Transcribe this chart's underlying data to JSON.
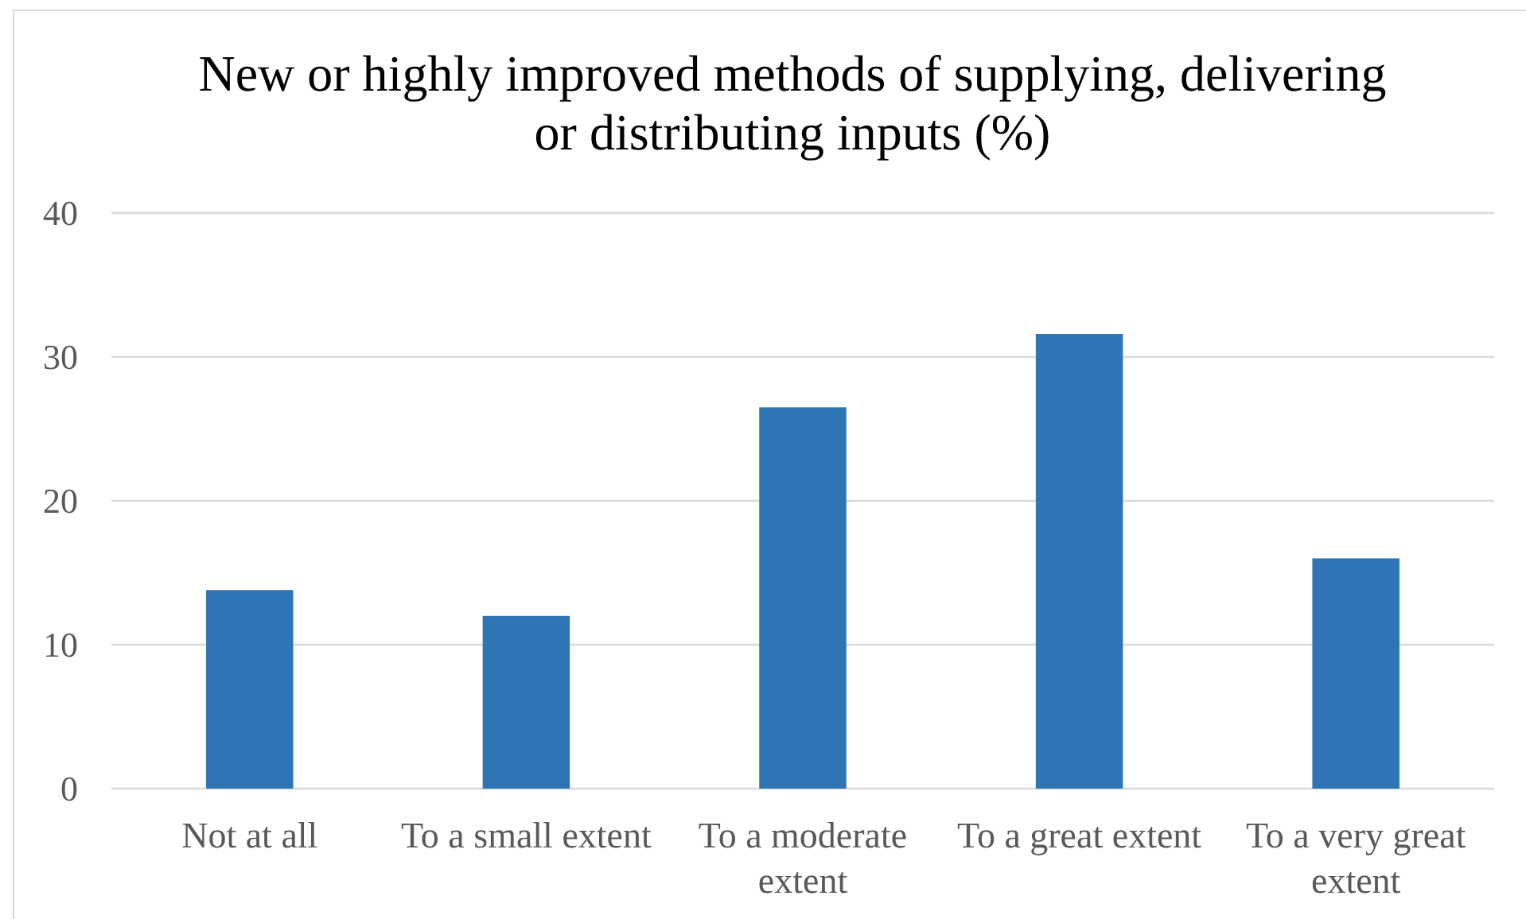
{
  "chart_data": {
    "type": "bar",
    "title": "New or highly improved methods of supplying, delivering or distributing inputs (%)",
    "categories": [
      "Not at all",
      "To a small extent",
      "To a moderate extent",
      "To a great extent",
      "To a very great extent"
    ],
    "values": [
      13.8,
      12.0,
      26.5,
      31.6,
      16.0
    ],
    "color": "#2e75b6",
    "ylim": [
      0,
      40
    ],
    "yticks": [
      0,
      10,
      20,
      30,
      40
    ],
    "grid": "y"
  }
}
